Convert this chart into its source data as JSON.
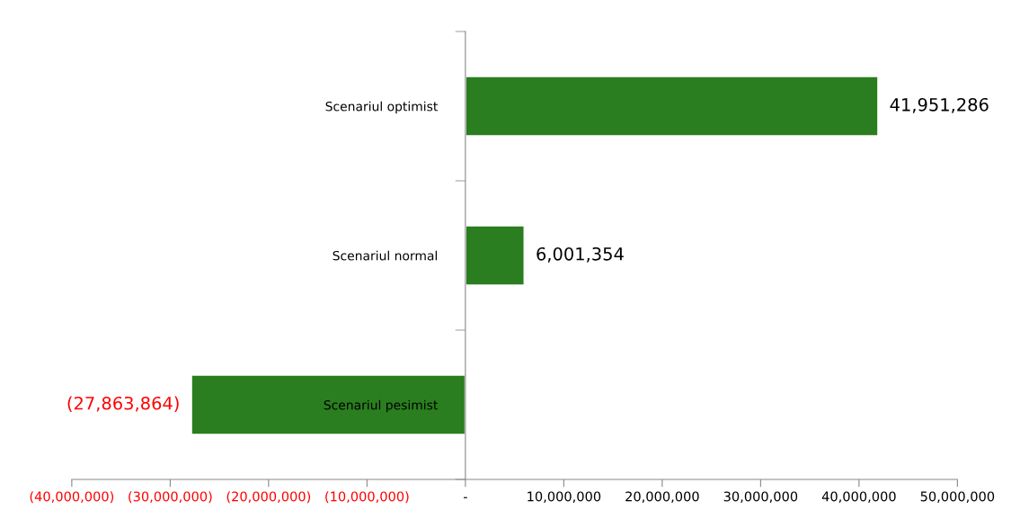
{
  "chart_data": {
    "type": "bar",
    "orientation": "horizontal",
    "categories": [
      "Scenariul optimist",
      "Scenariul normal",
      "Scenariul pesimist"
    ],
    "values": [
      41951286,
      6001354,
      -27863864
    ],
    "value_labels": [
      "41,951,286",
      "6,001,354",
      "(27,863,864)"
    ],
    "color": "#2a7e1f",
    "xlim": [
      -40000000,
      50000000
    ],
    "xticks": [
      {
        "value": -40000000,
        "label": "(40,000,000)"
      },
      {
        "value": -30000000,
        "label": "(30,000,000)"
      },
      {
        "value": -20000000,
        "label": "(20,000,000)"
      },
      {
        "value": -10000000,
        "label": "(10,000,000)"
      },
      {
        "value": 0,
        "label": "-"
      },
      {
        "value": 10000000,
        "label": "10,000,000"
      },
      {
        "value": 20000000,
        "label": "20,000,000"
      },
      {
        "value": 30000000,
        "label": "30,000,000"
      },
      {
        "value": 40000000,
        "label": "40,000,000"
      },
      {
        "value": 50000000,
        "label": "50,000,000"
      }
    ],
    "grid": false,
    "legend": false
  }
}
